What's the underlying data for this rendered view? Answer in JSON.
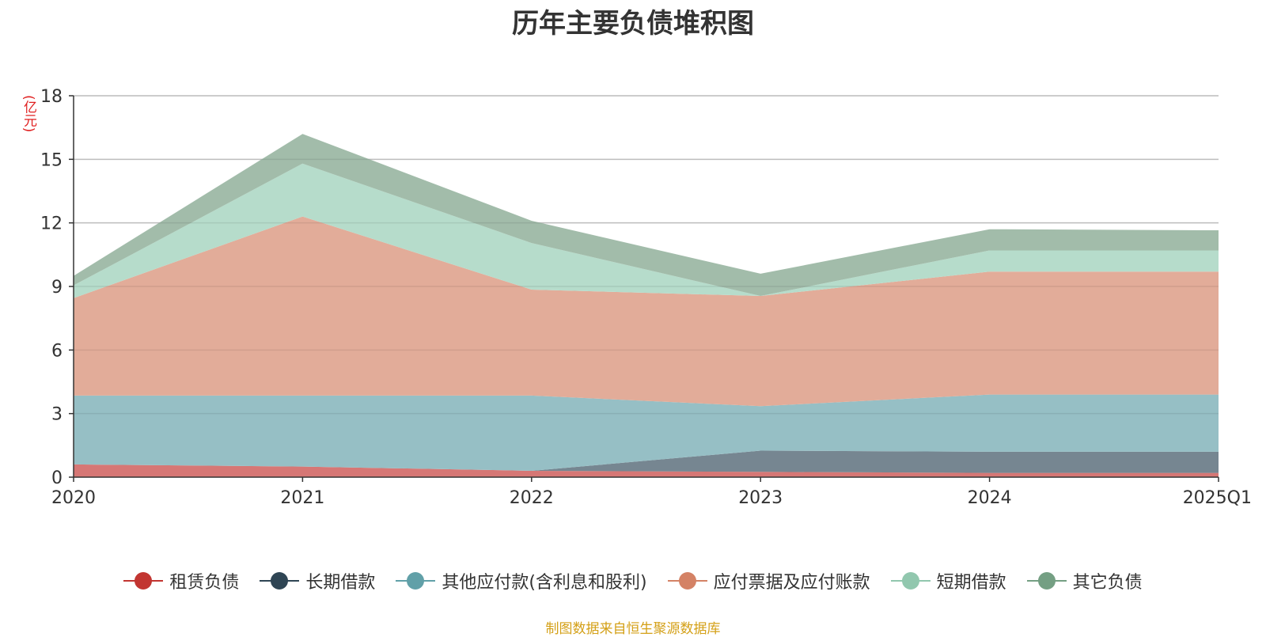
{
  "chart_data": {
    "type": "area",
    "title": "历年主要负债堆积图",
    "y_unit": "(亿元)",
    "categories": [
      "2020",
      "2021",
      "2022",
      "2023",
      "2024",
      "2025Q1"
    ],
    "ylim": [
      0,
      18
    ],
    "yticks": [
      0,
      3,
      6,
      9,
      12,
      15,
      18
    ],
    "stacked": true,
    "grid": true,
    "legend_position": "bottom",
    "series": [
      {
        "name": "租赁负债",
        "color": "#c23531",
        "fill": "#d4706e",
        "values": [
          0.6,
          0.5,
          0.3,
          0.25,
          0.2,
          0.2
        ]
      },
      {
        "name": "长期借款",
        "color": "#2f4554",
        "fill": "#6f7f8b",
        "values": [
          0.0,
          0.0,
          0.0,
          1.0,
          1.0,
          1.0
        ]
      },
      {
        "name": "其他应付款(含利息和股利)",
        "color": "#61a0a8",
        "fill": "#90bcc2",
        "values": [
          3.25,
          3.35,
          3.55,
          2.1,
          2.7,
          2.7
        ]
      },
      {
        "name": "应付票据及应付账款",
        "color": "#d48265",
        "fill": "#e0a893",
        "values": [
          4.6,
          8.45,
          5.0,
          5.2,
          5.8,
          5.8
        ]
      },
      {
        "name": "短期借款",
        "color": "#91c7ae",
        "fill": "#b2dac8",
        "values": [
          0.6,
          2.5,
          2.2,
          0.0,
          1.0,
          1.0
        ]
      },
      {
        "name": "其它负债",
        "color": "#749f83",
        "fill": "#9db8a5",
        "values": [
          0.45,
          1.4,
          1.05,
          1.05,
          1.0,
          0.95
        ]
      }
    ]
  },
  "footer": {
    "source": "制图数据来自恒生聚源数据库"
  }
}
